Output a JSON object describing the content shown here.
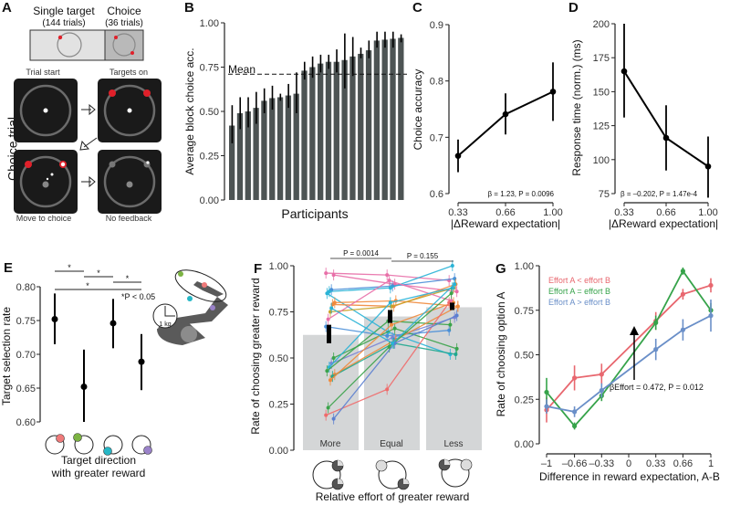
{
  "panel_letters": {
    "A": "A",
    "B": "B",
    "C": "C",
    "D": "D",
    "E": "E",
    "F": "F",
    "G": "G"
  },
  "panel_a": {
    "single_target_label": "Single target",
    "single_target_trials": "(144 trials)",
    "choice_label": "Choice",
    "choice_trials": "(36 trials)",
    "side_label": "Choice trial",
    "steps": [
      "Trial start",
      "Targets on",
      "Move to choice",
      "No feedback"
    ],
    "colors": {
      "target": "#e0202a",
      "screen": "#1a1a1a",
      "ring": "#6b6b6b"
    }
  },
  "chart_data": [
    {
      "id": "B",
      "type": "bar",
      "title": "",
      "xlabel": "Participants",
      "ylabel": "Average block choice acc.",
      "ylim": [
        0,
        1
      ],
      "yticks": [
        "0.00",
        "0.25",
        "0.50",
        "0.75",
        "1.00"
      ],
      "values": [
        0.42,
        0.49,
        0.5,
        0.52,
        0.56,
        0.575,
        0.58,
        0.59,
        0.6,
        0.73,
        0.75,
        0.77,
        0.78,
        0.78,
        0.79,
        0.81,
        0.825,
        0.845,
        0.9,
        0.905,
        0.91,
        0.915
      ],
      "err_low": [
        0.32,
        0.4,
        0.41,
        0.43,
        0.49,
        0.51,
        0.56,
        0.52,
        0.49,
        0.68,
        0.69,
        0.72,
        0.74,
        0.72,
        0.63,
        0.7,
        0.8,
        0.8,
        0.86,
        0.86,
        0.86,
        0.89
      ],
      "err_high": [
        0.535,
        0.58,
        0.58,
        0.61,
        0.63,
        0.645,
        0.6,
        0.655,
        0.72,
        0.78,
        0.81,
        0.82,
        0.82,
        0.85,
        0.94,
        0.92,
        0.86,
        0.9,
        0.95,
        0.95,
        0.95,
        0.935
      ],
      "mean_line": 0.71,
      "mean_label": "Mean",
      "bar_color": "#4d5454"
    },
    {
      "id": "C",
      "type": "line",
      "xlabel": "|ΔReward expectation|",
      "ylabel": "Choice accuracy",
      "x": [
        "0.33",
        "0.66",
        "1.00"
      ],
      "ylim": [
        0.6,
        0.9
      ],
      "yticks": [
        "0.6",
        "0.7",
        "0.8",
        "0.9"
      ],
      "values": [
        0.667,
        0.741,
        0.781
      ],
      "err_low": [
        0.638,
        0.705,
        0.729
      ],
      "err_high": [
        0.696,
        0.778,
        0.833
      ],
      "annotation": "β = 1.23, P = 0.0096"
    },
    {
      "id": "D",
      "type": "line",
      "xlabel": "|ΔReward expectation|",
      "ylabel": "Response time (norm.) (ms)",
      "x": [
        "0.33",
        "0.66",
        "1.00"
      ],
      "ylim": [
        75,
        200
      ],
      "yticks": [
        "75",
        "100",
        "125",
        "150",
        "175",
        "200"
      ],
      "values": [
        165,
        116,
        95
      ],
      "err_low": [
        131,
        92,
        72
      ],
      "err_high": [
        200,
        140,
        117
      ],
      "annotation": "β = –0.202, P = 1.47e-4"
    },
    {
      "id": "E",
      "type": "scatter",
      "xlabel_line1": "Target direction",
      "xlabel_line2": "with greater reward",
      "ylabel": "Target selection rate",
      "ylim": [
        0.6,
        0.8
      ],
      "yticks": [
        "0.60",
        "0.65",
        "0.70",
        "0.75",
        "0.80"
      ],
      "values": [
        0.752,
        0.652,
        0.746,
        0.689
      ],
      "err_low": [
        0.715,
        0.598,
        0.709,
        0.647
      ],
      "err_high": [
        0.79,
        0.707,
        0.782,
        0.73
      ],
      "target_colors": [
        "#ef7a7a",
        "#7cb342",
        "#26b7c6",
        "#9a82c9"
      ],
      "significance": [
        {
          "pair": [
            0,
            1
          ],
          "label": "*"
        },
        {
          "pair": [
            1,
            2
          ],
          "label": "*"
        },
        {
          "pair": [
            2,
            3
          ],
          "label": "*"
        },
        {
          "pair": [
            0,
            3
          ],
          "label": "*"
        }
      ],
      "sig_note": "*P < 0.05",
      "weight_label": "1 kg"
    },
    {
      "id": "F",
      "type": "bar",
      "xlabel": "Relative effort of greater reward",
      "ylabel": "Rate of choosing greater reward",
      "categories": [
        "More",
        "Equal",
        "Less"
      ],
      "ylim": [
        0,
        1
      ],
      "yticks": [
        "0.00",
        "0.25",
        "0.50",
        "0.75",
        "1.00"
      ],
      "values": [
        0.625,
        0.725,
        0.775
      ],
      "mean_err_low": [
        0.58,
        0.69,
        0.76
      ],
      "mean_err_high": [
        0.68,
        0.76,
        0.8
      ],
      "comparisons": [
        {
          "pair": [
            0,
            1
          ],
          "label": "P = 0.0014"
        },
        {
          "pair": [
            1,
            2
          ],
          "label": "P = 0.155"
        }
      ],
      "participants": [
        {
          "color": "#e86fa8",
          "values": [
            0.96,
            0.95,
            0.92
          ]
        },
        {
          "color": "#e86fa8",
          "values": [
            0.95,
            0.9,
            0.86
          ]
        },
        {
          "color": "#4a8fd8",
          "values": [
            0.87,
            0.89,
            0.93
          ]
        },
        {
          "color": "#29b3d6",
          "values": [
            0.86,
            0.88,
            1.0
          ]
        },
        {
          "color": "#29b3d6",
          "values": [
            0.85,
            0.64,
            0.52
          ]
        },
        {
          "color": "#f08a3c",
          "values": [
            0.8,
            0.81,
            0.78
          ]
        },
        {
          "color": "#f08a3c",
          "values": [
            0.79,
            0.78,
            0.9
          ]
        },
        {
          "color": "#c9a227",
          "values": [
            0.75,
            0.78,
            0.88
          ]
        },
        {
          "color": "#e86fa8",
          "values": [
            0.71,
            0.92,
            0.81
          ]
        },
        {
          "color": "#4a8fd8",
          "values": [
            0.67,
            0.62,
            0.65
          ]
        },
        {
          "color": "#3aa34a",
          "values": [
            0.5,
            0.66,
            0.55
          ]
        },
        {
          "color": "#7b83d4",
          "values": [
            0.47,
            0.61,
            0.72
          ]
        },
        {
          "color": "#29b3d6",
          "values": [
            0.45,
            0.8,
            0.88
          ]
        },
        {
          "color": "#3aa34a",
          "values": [
            0.43,
            0.7,
            0.68
          ]
        },
        {
          "color": "#f08a3c",
          "values": [
            0.41,
            0.6,
            0.78
          ]
        },
        {
          "color": "#1fa88f",
          "values": [
            0.4,
            0.58,
            0.52
          ]
        },
        {
          "color": "#f08a3c",
          "values": [
            0.38,
            0.68,
            0.8
          ]
        },
        {
          "color": "#3aa34a",
          "values": [
            0.23,
            0.56,
            0.85
          ]
        },
        {
          "color": "#ef6b6b",
          "values": [
            0.19,
            0.33,
            0.8
          ]
        },
        {
          "color": "#5b7fd0",
          "values": [
            0.17,
            0.58,
            0.73
          ]
        },
        {
          "color": "#29b3d6",
          "values": [
            0.77,
            0.58,
            0.9
          ]
        }
      ]
    },
    {
      "id": "G",
      "type": "line",
      "xlabel": "Difference in reward expectation, A-B",
      "ylabel": "Rate of choosing option A",
      "x": [
        -1,
        -0.66,
        -0.33,
        0.33,
        0.66,
        1
      ],
      "xticks": [
        "–1",
        "–0.66",
        "–0.33",
        "0",
        "0.33",
        "0.66",
        "1"
      ],
      "xtick_values": [
        -1,
        -0.66,
        -0.33,
        0,
        0.33,
        0.66,
        1
      ],
      "ylim": [
        0,
        1
      ],
      "yticks": [
        "0.00",
        "0.25",
        "0.50",
        "0.75",
        "1.00"
      ],
      "series": [
        {
          "name": "Effort A < effort B",
          "color": "#e8676f",
          "values": [
            0.19,
            0.37,
            0.39,
            0.69,
            0.84,
            0.89
          ],
          "err": [
            0.07,
            0.07,
            0.06,
            0.05,
            0.03,
            0.04
          ]
        },
        {
          "name": "Effort A = effort B",
          "color": "#36a34a",
          "values": [
            0.29,
            0.1,
            0.27,
            0.68,
            0.97,
            0.75
          ],
          "err": [
            0.08,
            0.02,
            0.03,
            0.04,
            0.02,
            0.04
          ]
        },
        {
          "name": "Effort A > effort B",
          "color": "#6a8fc8",
          "values": [
            0.21,
            0.18,
            0.3,
            0.53,
            0.64,
            0.72
          ],
          "err": [
            0.04,
            0.03,
            0.04,
            0.06,
            0.06,
            0.09
          ]
        }
      ],
      "annotation": "βEffort = 0.472, P = 0.012",
      "legend_position": "top-left"
    }
  ]
}
